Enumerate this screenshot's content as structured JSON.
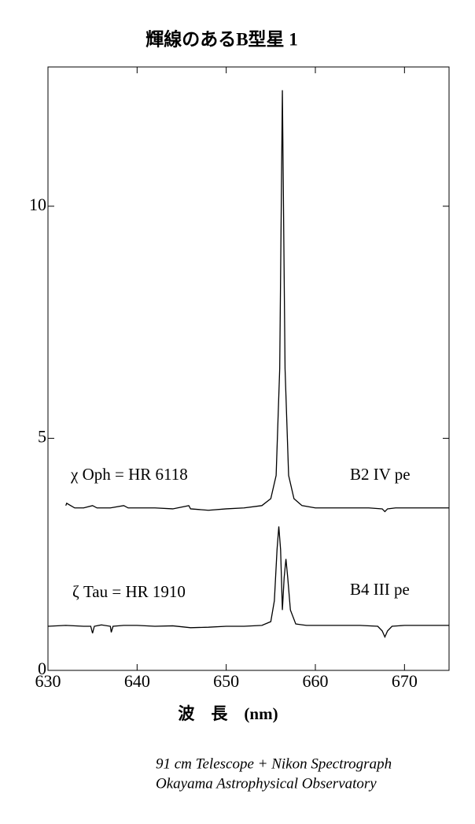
{
  "chart_data": {
    "type": "line",
    "title": "輝線のあるB型星 1",
    "x_label": "波　長　(nm)",
    "xlim": [
      630,
      675
    ],
    "ylim": [
      0,
      13
    ],
    "xticks": [
      630,
      640,
      650,
      660,
      670
    ],
    "yticks": [
      0,
      5,
      10
    ],
    "grid": false,
    "annotations": [
      "χ  Oph = HR 6118",
      "B2 IV pe",
      "ζ  Tau = HR 1910",
      "B4 III pe"
    ],
    "footnotes": [
      "91 cm Telescope + Nikon Spectrograph",
      "Okayama Astrophysical Observatory"
    ],
    "series": [
      {
        "color": "#000000",
        "x": [
          632,
          632.1,
          633,
          634,
          635,
          635.5,
          637,
          638.5,
          639,
          640,
          642,
          644,
          645.8,
          646,
          648,
          650,
          652,
          654,
          655,
          655.6,
          656.0,
          656.2,
          656.3,
          656.4,
          656.6,
          657,
          657.6,
          658.5,
          660,
          662,
          664,
          666,
          667.5,
          667.8,
          668.1,
          669,
          672,
          675
        ],
        "values": [
          3.55,
          3.6,
          3.5,
          3.5,
          3.55,
          3.5,
          3.5,
          3.55,
          3.5,
          3.5,
          3.5,
          3.48,
          3.55,
          3.48,
          3.45,
          3.48,
          3.5,
          3.55,
          3.7,
          4.2,
          6.5,
          10.5,
          12.5,
          10.5,
          6.5,
          4.2,
          3.7,
          3.55,
          3.5,
          3.5,
          3.5,
          3.5,
          3.48,
          3.42,
          3.48,
          3.5,
          3.5,
          3.5
        ]
      },
      {
        "color": "#000000",
        "x": [
          630,
          632,
          634,
          634.8,
          635,
          635.2,
          636,
          637,
          637.1,
          637.3,
          638.5,
          640,
          642,
          644,
          646,
          648,
          650,
          652,
          654,
          655,
          655.4,
          655.7,
          655.9,
          656.1,
          656.3,
          656.5,
          656.7,
          656.9,
          657.2,
          657.8,
          659,
          662,
          665,
          667,
          667.5,
          667.8,
          668.1,
          668.6,
          670,
          675
        ],
        "values": [
          0.95,
          0.97,
          0.95,
          0.95,
          0.8,
          0.95,
          0.98,
          0.95,
          0.82,
          0.95,
          0.97,
          0.97,
          0.95,
          0.96,
          0.92,
          0.93,
          0.95,
          0.95,
          0.97,
          1.05,
          1.5,
          2.6,
          3.1,
          2.6,
          1.3,
          2.0,
          2.4,
          2.0,
          1.3,
          1.0,
          0.97,
          0.97,
          0.97,
          0.95,
          0.85,
          0.72,
          0.85,
          0.95,
          0.97,
          0.97
        ]
      }
    ]
  }
}
